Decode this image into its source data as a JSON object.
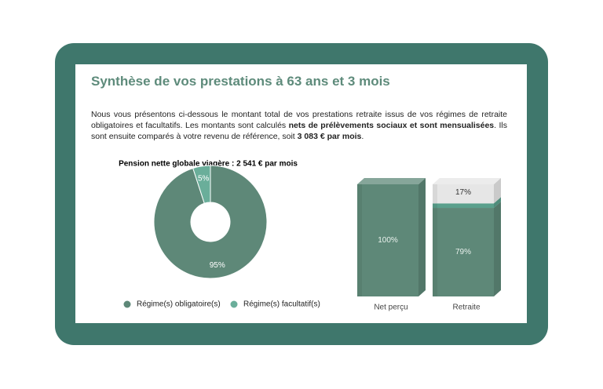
{
  "title": "Synthèse de vos prestations à 63 ans et 3 mois",
  "intro": [
    {
      "text": "Nous vous présentons ci-dessous le montant total de vos prestations retraite issus de vos régimes de retraite obligatoires et facultatifs. Les montants sont calculés ",
      "bold": false
    },
    {
      "text": "nets de prélèvements sociaux et sont mensualisées",
      "bold": true
    },
    {
      "text": ". Ils sont ensuite comparés à votre revenu de référence, soit ",
      "bold": false
    },
    {
      "text": "3 083 € par mois",
      "bold": true
    },
    {
      "text": ".",
      "bold": false
    }
  ],
  "chart_data": [
    {
      "type": "pie",
      "title": "Pension nette globale viagère : 2 541 € par mois",
      "categories": [
        "Régime(s) obligatoire(s)",
        "Régime(s) facultatif(s)"
      ],
      "values": [
        95,
        5
      ],
      "value_labels": [
        "95%",
        "5%"
      ],
      "colors": [
        "#5e8878",
        "#6aae9a"
      ]
    },
    {
      "type": "bar",
      "stacked": true,
      "three_d": true,
      "categories": [
        "Net perçu",
        "Retraite"
      ],
      "ylim": [
        0,
        100
      ],
      "series": [
        {
          "color": "#5e8878",
          "values": [
            100,
            79
          ],
          "value_labels": [
            "100%",
            "79%"
          ]
        },
        {
          "color": "#5aa08c",
          "values": [
            null,
            4
          ]
        },
        {
          "color": "#e6e6e6",
          "values": [
            null,
            17
          ],
          "value_labels": [
            null,
            "17%"
          ]
        }
      ]
    }
  ]
}
